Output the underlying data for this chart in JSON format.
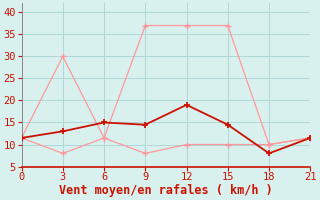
{
  "x": [
    0,
    3,
    6,
    9,
    12,
    15,
    18,
    21
  ],
  "y_mean": [
    11.5,
    13,
    15,
    14.5,
    19,
    14.5,
    8,
    11.5
  ],
  "y_gust_high": [
    11.5,
    30,
    11.5,
    37,
    37,
    37,
    10,
    11.5
  ],
  "y_gust_low": [
    11.5,
    8,
    11.5,
    8,
    10,
    10,
    10,
    11.5
  ],
  "mean_color": "#cc1100",
  "gust_color": "#ff9999",
  "background_color": "#d8f0ee",
  "grid_color": "#b0d8d8",
  "xlabel": "Vent moyen/en rafales ( km/h )",
  "xlabel_color": "#cc1100",
  "ylim": [
    5,
    42
  ],
  "xlim": [
    0,
    21
  ],
  "yticks": [
    5,
    10,
    15,
    20,
    25,
    30,
    35,
    40
  ],
  "xticks": [
    0,
    3,
    6,
    9,
    12,
    15,
    18,
    21
  ],
  "tick_fontsize": 7.5,
  "xlabel_fontsize": 8.5
}
